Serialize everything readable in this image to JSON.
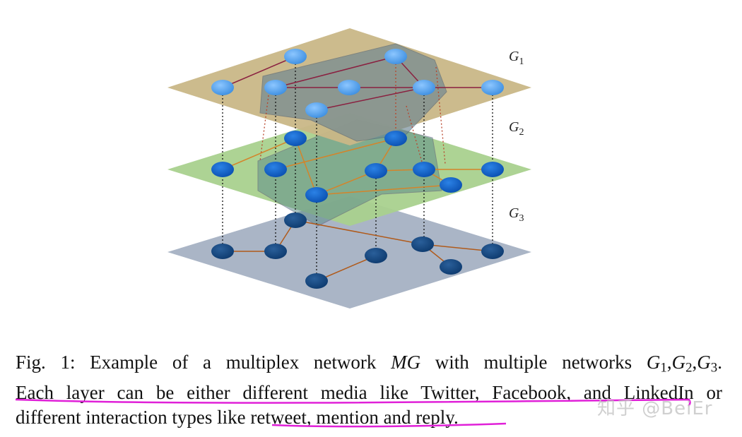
{
  "figure": {
    "layers": [
      {
        "name": "G",
        "sub": "1"
      },
      {
        "name": "G",
        "sub": "2"
      },
      {
        "name": "G",
        "sub": "3"
      }
    ]
  },
  "caption": {
    "line1_prefix": "Fig. 1: Example of a multiplex network ",
    "line1_mg": "MG",
    "line1_mid": " with multiple networks ",
    "g": "G",
    "s1": "1",
    "s2": "2",
    "s3": "3",
    "comma": ",",
    "period": ".",
    "line2": "Each layer can be either different media like Twitter, Facebook, and LinkedIn or",
    "line3": "different interaction types like retweet, mention and reply."
  },
  "watermark": "知乎 @BeiEr",
  "colors": {
    "layer1": "#c9b787",
    "layer2": "#a9d18e",
    "layer3": "#aab5c6",
    "annotation": "#e020d8"
  }
}
